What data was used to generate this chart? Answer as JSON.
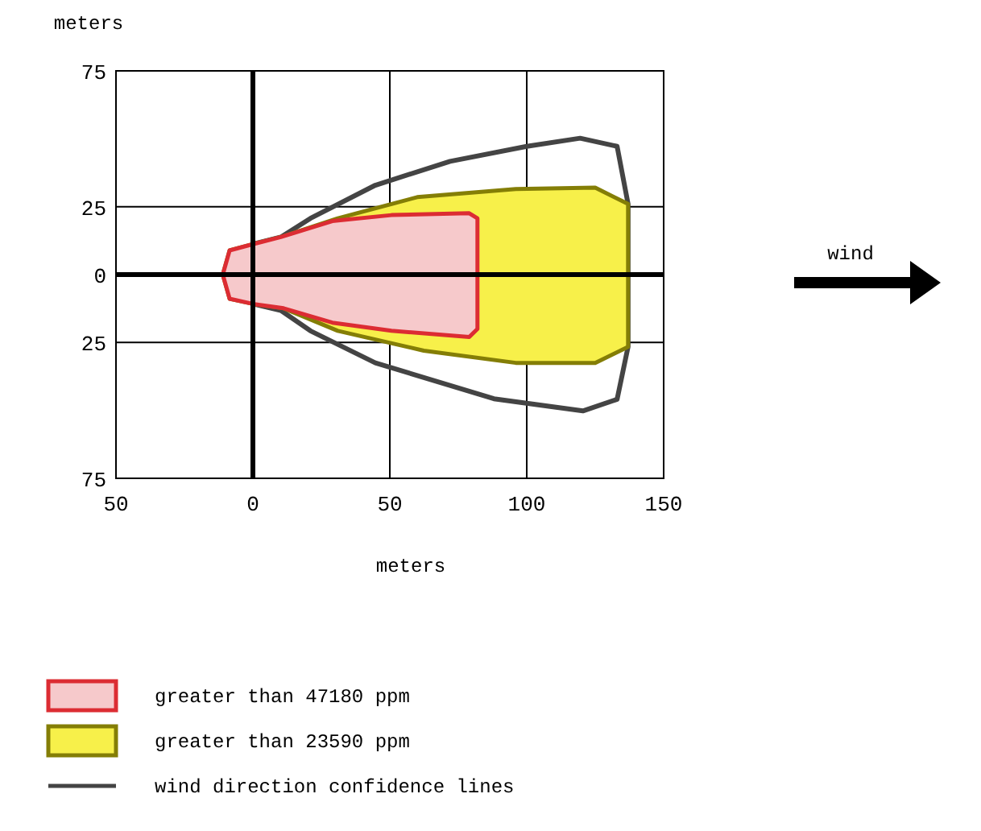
{
  "chart_data": {
    "type": "area",
    "xlabel": "meters",
    "ylabel": "meters",
    "xlim": [
      -50,
      150
    ],
    "ylim": [
      -75,
      75
    ],
    "xticks": [
      {
        "value": -50,
        "label": "50"
      },
      0,
      50,
      100,
      150
    ],
    "yticks": [
      {
        "value": -75,
        "label": "75"
      },
      {
        "value": -25,
        "label": "25"
      },
      0,
      25,
      75
    ],
    "grid": true,
    "legend": "bottom",
    "annotations": [
      "wind"
    ],
    "series": [
      {
        "name": "greater than 47180 ppm",
        "color": "#f6c9cb",
        "x": [
          -11,
          -8.5,
          0,
          10.2,
          29,
          50.6,
          79,
          82,
          82,
          79,
          50.6,
          29,
          11.2,
          0,
          -8.5
        ],
        "values": [
          0,
          8.9,
          11.2,
          13.8,
          19.7,
          21.9,
          22.6,
          20.7,
          -20,
          -23,
          -20.7,
          -17.7,
          -12.4,
          -10.8,
          -8.9
        ]
      },
      {
        "name": "greater than 23590 ppm",
        "color": "#f7f04a",
        "x": [
          -11,
          -8.5,
          0,
          10.2,
          31,
          60,
          96,
          125,
          137,
          137,
          125,
          96,
          62.4,
          31,
          11.2,
          0,
          -8.5
        ],
        "values": [
          0,
          8.9,
          11.2,
          13.8,
          20.7,
          28.5,
          31.5,
          32,
          26,
          -26.6,
          -32.5,
          -32.5,
          -28,
          -20.7,
          -12.4,
          -10.8,
          -8.9
        ]
      },
      {
        "name": "wind direction confidence lines",
        "type": "line",
        "color": "#444444",
        "x": [
          0,
          10.2,
          21,
          44.7,
          72,
          100,
          119.5,
          133,
          137,
          137,
          133,
          120.5,
          88,
          44.7,
          21,
          10.2,
          0
        ],
        "values": [
          11.2,
          13.8,
          20.7,
          32.9,
          41.7,
          47.2,
          50.2,
          47.2,
          26,
          -26.6,
          -45.9,
          -50.2,
          -45.7,
          -32.5,
          -20.7,
          -13.2,
          -10.8
        ]
      }
    ]
  }
}
